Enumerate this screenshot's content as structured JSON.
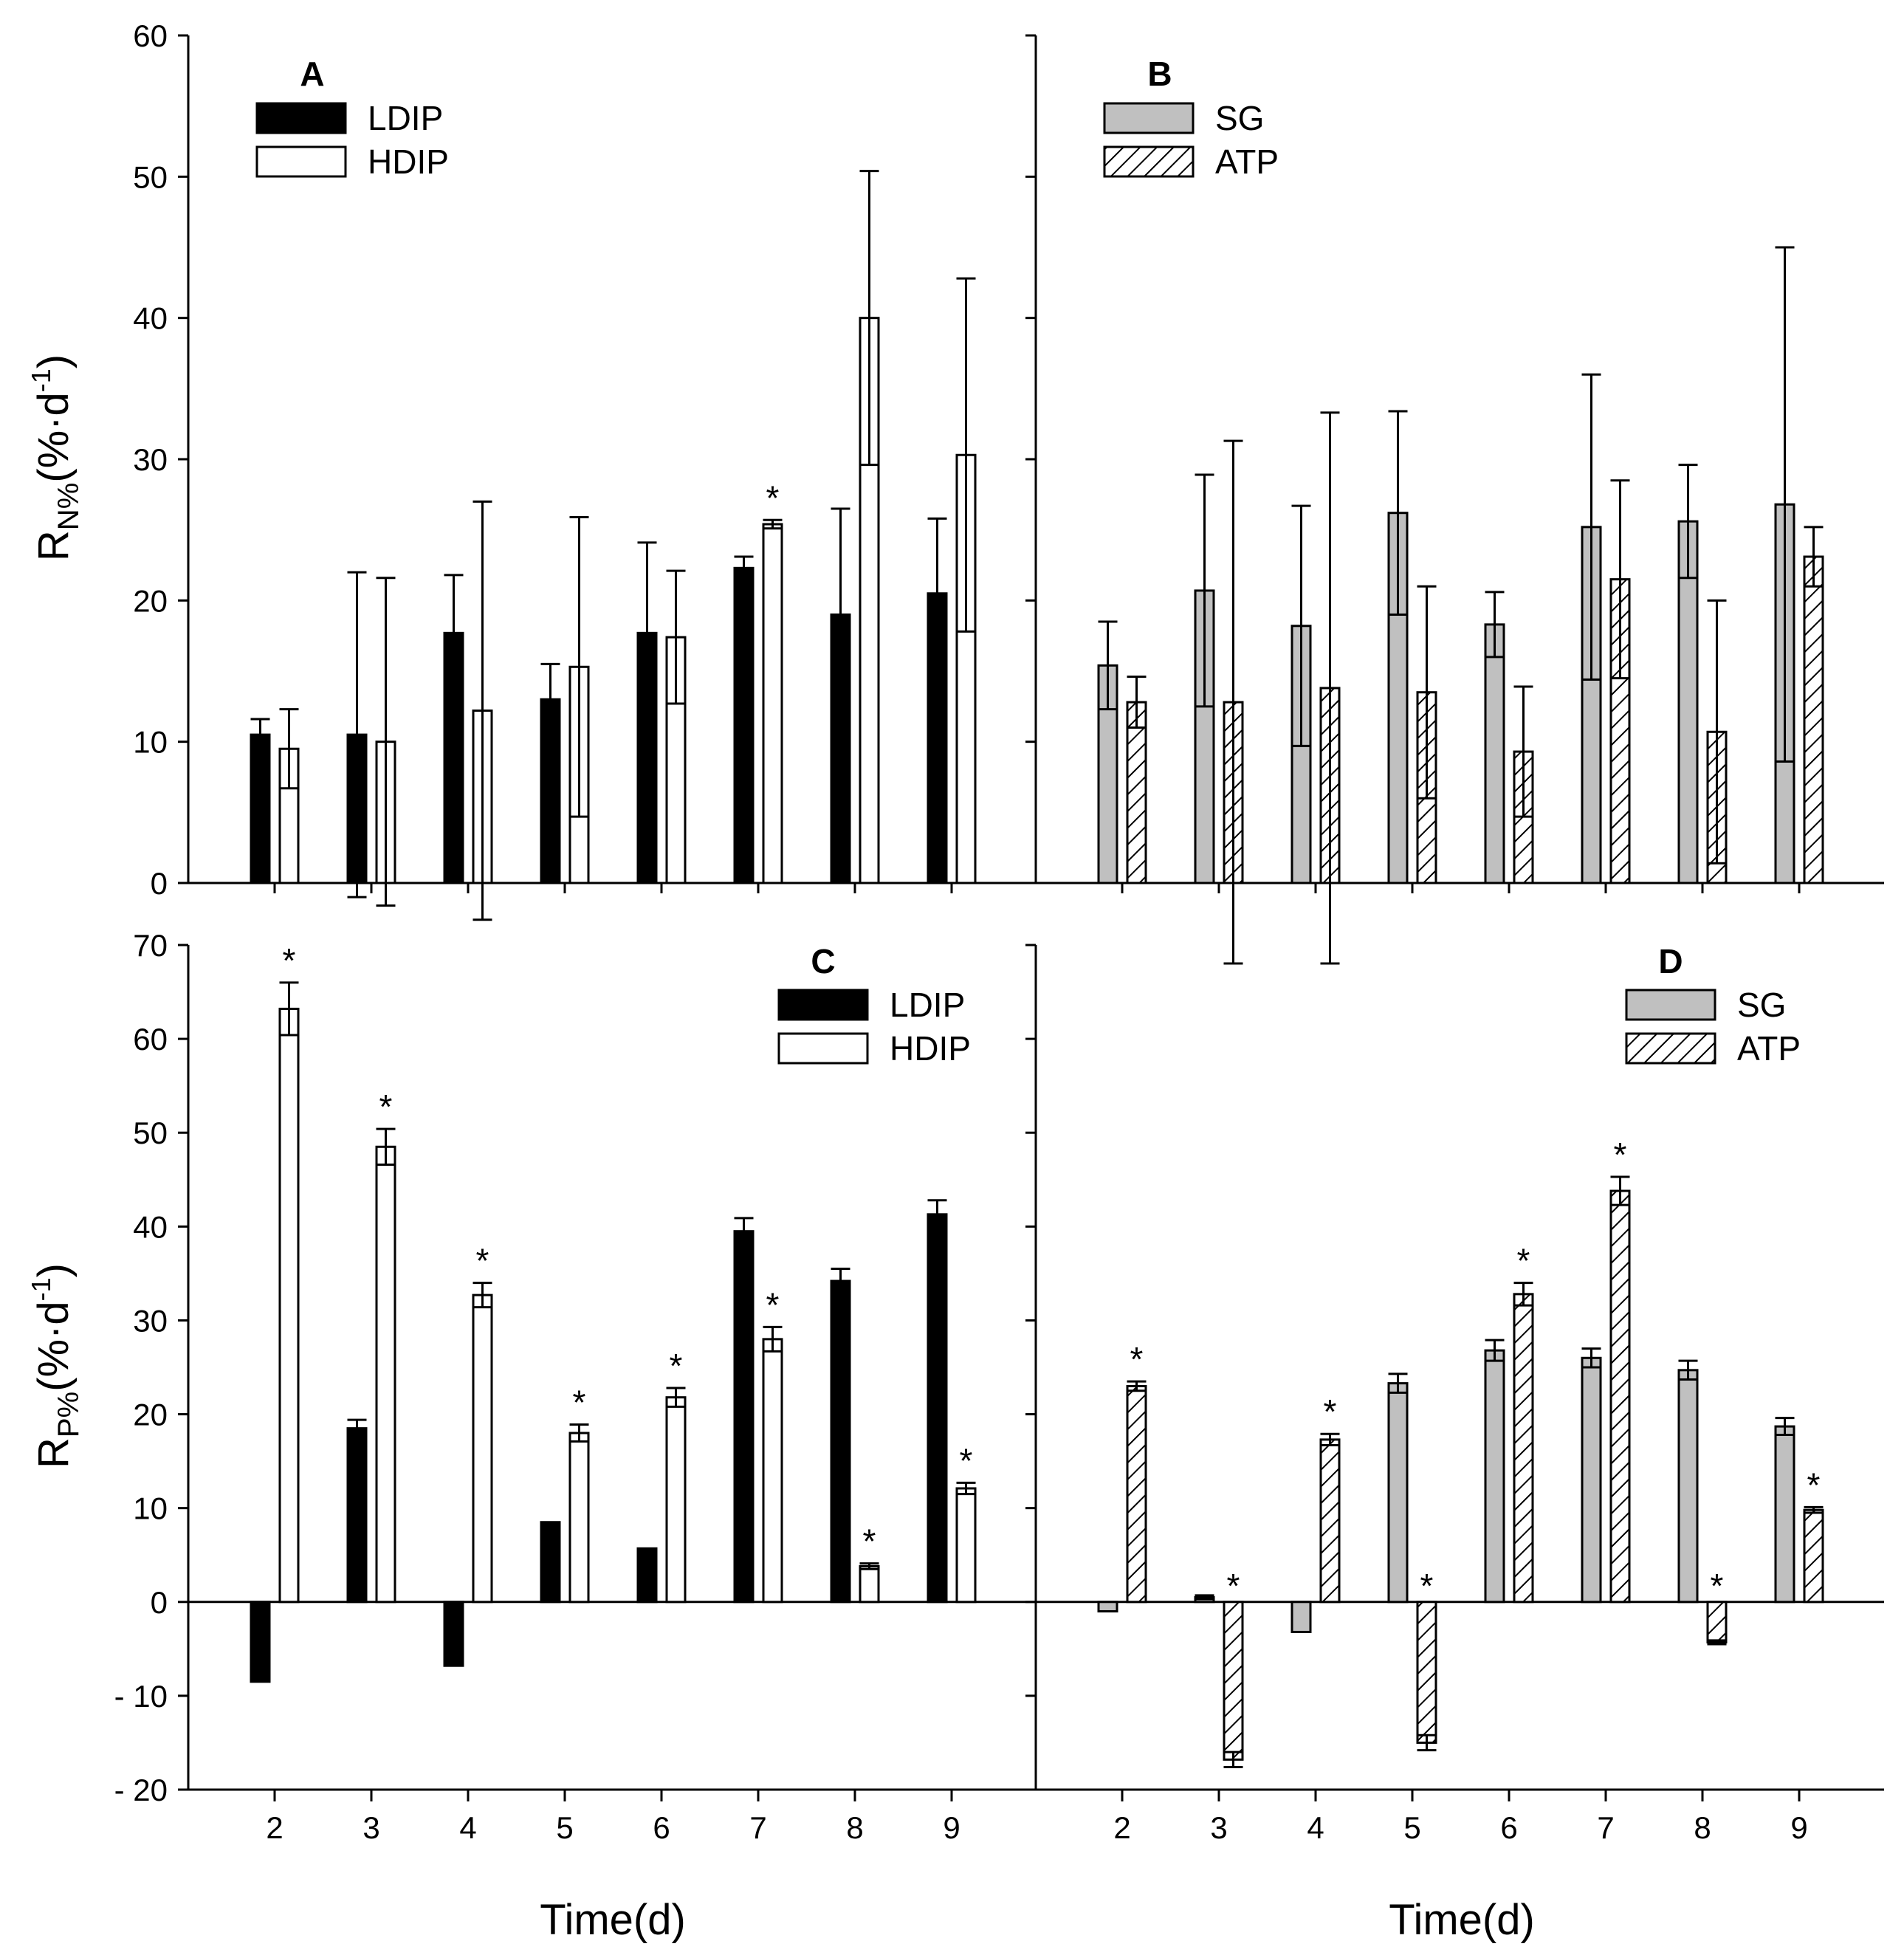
{
  "colors": {
    "LDIP": "#000000",
    "HDIP": "#ffffff",
    "SG": "#c0c0c0",
    "ATP_hatch": "#000000",
    "axis": "#000000"
  },
  "x_axis": {
    "title": "Time(d)",
    "ticks": [
      "2",
      "3",
      "4",
      "5",
      "6",
      "7",
      "8",
      "9"
    ]
  },
  "top_ylabel": {
    "main": "R",
    "sub": "N%",
    "unit": "(%·d",
    "sup": "-1",
    "close": ")"
  },
  "bottom_ylabel": {
    "main": "R",
    "sub": "P%",
    "unit": "(%·d",
    "sup": "-1",
    "close": ")"
  },
  "top_yticks": [
    "0",
    "10",
    "20",
    "30",
    "40",
    "50",
    "60"
  ],
  "bottom_yticks": [
    "- 20",
    "- 10",
    "0",
    "10",
    "20",
    "30",
    "40",
    "50",
    "60",
    "70"
  ],
  "chart_data": [
    {
      "panel": "A",
      "type": "bar",
      "title": "A",
      "xlabel": "",
      "ylabel": "RN%(%·d-1)",
      "categories": [
        "2",
        "3",
        "4",
        "5",
        "6",
        "7",
        "8",
        "9"
      ],
      "ylim": [
        0,
        60
      ],
      "legend_position": "top-left",
      "series": [
        {
          "name": "LDIP",
          "values": [
            10.5,
            10.5,
            17.7,
            13.0,
            17.7,
            22.3,
            19.0,
            20.5
          ],
          "errors": [
            1.1,
            11.5,
            4.1,
            2.5,
            6.4,
            0.8,
            7.5,
            5.3
          ],
          "significant": [
            false,
            false,
            false,
            false,
            false,
            false,
            false,
            false
          ]
        },
        {
          "name": "HDIP",
          "values": [
            9.5,
            10.0,
            12.2,
            15.3,
            17.4,
            25.4,
            40.0,
            30.3
          ],
          "errors": [
            2.8,
            11.6,
            14.8,
            10.6,
            4.7,
            0.3,
            10.4,
            12.5
          ],
          "significant": [
            false,
            false,
            false,
            false,
            false,
            true,
            false,
            false
          ]
        }
      ]
    },
    {
      "panel": "B",
      "type": "bar",
      "title": "B",
      "xlabel": "",
      "ylabel": "",
      "categories": [
        "2",
        "3",
        "4",
        "5",
        "6",
        "7",
        "8",
        "9"
      ],
      "ylim": [
        0,
        60
      ],
      "legend_position": "top-left",
      "series": [
        {
          "name": "SG",
          "values": [
            15.4,
            20.7,
            18.2,
            26.2,
            18.3,
            25.2,
            25.6,
            26.8
          ],
          "errors": [
            3.1,
            8.2,
            8.5,
            7.2,
            2.3,
            10.8,
            4.0,
            18.2
          ],
          "significant": [
            false,
            false,
            false,
            false,
            false,
            false,
            false,
            false
          ]
        },
        {
          "name": "ATP",
          "values": [
            12.8,
            12.8,
            13.8,
            13.5,
            9.3,
            21.5,
            10.7,
            23.1
          ],
          "errors": [
            1.8,
            18.5,
            19.5,
            7.5,
            4.6,
            7.0,
            9.3,
            2.1
          ],
          "significant": [
            false,
            false,
            false,
            false,
            false,
            false,
            false,
            false
          ]
        }
      ]
    },
    {
      "panel": "C",
      "type": "bar",
      "title": "C",
      "xlabel": "Time(d)",
      "ylabel": "RP%(%·d-1)",
      "categories": [
        "2",
        "3",
        "4",
        "5",
        "6",
        "7",
        "8",
        "9"
      ],
      "ylim": [
        -20,
        70
      ],
      "legend_position": "top-right",
      "series": [
        {
          "name": "LDIP",
          "values": [
            -8.5,
            18.5,
            -6.8,
            8.5,
            5.7,
            39.5,
            34.2,
            41.3
          ],
          "errors": [
            0.0,
            0.9,
            0.0,
            0.0,
            0.0,
            1.4,
            1.3,
            1.5
          ],
          "significant": [
            false,
            false,
            false,
            false,
            false,
            false,
            false,
            false
          ]
        },
        {
          "name": "HDIP",
          "values": [
            63.2,
            48.5,
            32.7,
            18.0,
            21.8,
            28.0,
            3.8,
            12.1
          ],
          "errors": [
            2.8,
            1.9,
            1.3,
            0.9,
            1.0,
            1.3,
            0.3,
            0.6
          ],
          "significant": [
            true,
            true,
            true,
            true,
            true,
            true,
            true,
            true
          ]
        }
      ]
    },
    {
      "panel": "D",
      "type": "bar",
      "title": "D",
      "xlabel": "Time(d)",
      "ylabel": "",
      "categories": [
        "2",
        "3",
        "4",
        "5",
        "6",
        "7",
        "8",
        "9"
      ],
      "ylim": [
        -20,
        70
      ],
      "legend_position": "top-right",
      "series": [
        {
          "name": "SG",
          "values": [
            -1.0,
            0.5,
            -3.2,
            23.3,
            26.8,
            26.0,
            24.7,
            18.7
          ],
          "errors": [
            0.0,
            0.2,
            0.0,
            1.0,
            1.1,
            1.0,
            1.0,
            0.9
          ],
          "significant": [
            false,
            false,
            false,
            false,
            false,
            false,
            false,
            false
          ]
        },
        {
          "name": "ATP",
          "values": [
            23.0,
            -16.8,
            17.3,
            -15.0,
            32.8,
            43.8,
            -4.3,
            9.8
          ],
          "errors": [
            0.5,
            0.8,
            0.6,
            0.8,
            1.2,
            1.5,
            0.2,
            0.3
          ],
          "significant": [
            true,
            true,
            true,
            true,
            true,
            true,
            true,
            true
          ]
        }
      ]
    }
  ]
}
